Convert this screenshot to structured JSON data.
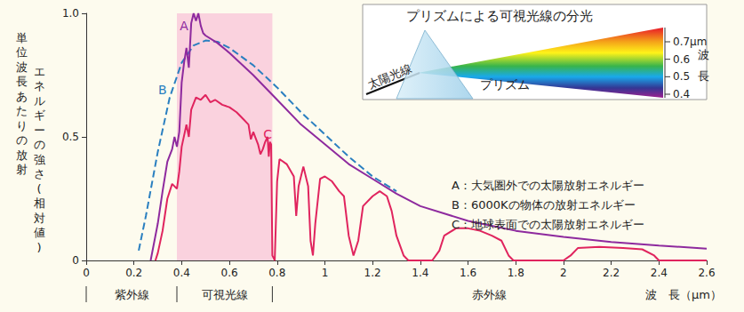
{
  "chart_data": {
    "type": "line",
    "xlabel": "波　長（μm）",
    "ylabel": [
      "単位波長あたりの放射",
      "エネルギーの強さ(相対値)"
    ],
    "xlim": [
      0,
      2.6
    ],
    "xticks": [
      0,
      0.2,
      0.4,
      0.6,
      0.8,
      1.0,
      1.2,
      1.4,
      1.6,
      1.8,
      2.0,
      2.2,
      2.4,
      2.6
    ],
    "ylim": [
      0,
      1
    ],
    "yticks": [
      0,
      0.5,
      {
        "value": 1,
        "label": "1.0"
      }
    ],
    "grid": false,
    "series": [
      {
        "name": "A",
        "legend_text": "A：大気圏外での太陽放射エネルギー",
        "color": "#8e2a9e",
        "line_style": "solid",
        "marker": "none",
        "x": [
          0.27,
          0.3,
          0.32,
          0.34,
          0.36,
          0.37,
          0.38,
          0.39,
          0.4,
          0.41,
          0.42,
          0.43,
          0.44,
          0.45,
          0.46,
          0.47,
          0.48,
          0.49,
          0.5,
          0.55,
          0.6,
          0.7,
          0.8,
          0.9,
          1.0,
          1.1,
          1.2,
          1.3,
          1.4,
          1.6,
          1.8,
          2.0,
          2.2,
          2.4,
          2.6
        ],
        "values": [
          0,
          0.15,
          0.28,
          0.4,
          0.45,
          0.5,
          0.46,
          0.52,
          0.72,
          0.8,
          0.86,
          0.78,
          0.96,
          1.0,
          0.97,
          1.0,
          0.95,
          0.92,
          0.91,
          0.88,
          0.84,
          0.75,
          0.65,
          0.55,
          0.47,
          0.39,
          0.33,
          0.27,
          0.22,
          0.16,
          0.12,
          0.095,
          0.075,
          0.06,
          0.048
        ]
      },
      {
        "name": "B",
        "legend_text": "B：6000Kの物体の放射エネルギー",
        "color": "#2a7fc0",
        "line_style": "dashed",
        "marker": "none",
        "x": [
          0.22,
          0.25,
          0.3,
          0.35,
          0.4,
          0.45,
          0.5,
          0.55,
          0.6,
          0.7,
          0.8,
          0.9,
          1.0,
          1.1,
          1.2,
          1.3
        ],
        "values": [
          0.04,
          0.18,
          0.44,
          0.66,
          0.8,
          0.87,
          0.89,
          0.885,
          0.86,
          0.79,
          0.7,
          0.6,
          0.51,
          0.42,
          0.34,
          0.28
        ]
      },
      {
        "name": "C",
        "legend_text": "C：地球表面での太陽放射エネルギー",
        "color": "#e0245e",
        "line_style": "solid",
        "marker": "none",
        "x": [
          0.29,
          0.3,
          0.32,
          0.34,
          0.36,
          0.38,
          0.39,
          0.4,
          0.42,
          0.43,
          0.44,
          0.46,
          0.48,
          0.5,
          0.52,
          0.54,
          0.57,
          0.6,
          0.63,
          0.66,
          0.68,
          0.69,
          0.7,
          0.72,
          0.73,
          0.74,
          0.75,
          0.76,
          0.765,
          0.77,
          0.775,
          0.78,
          0.79,
          0.8,
          0.81,
          0.84,
          0.87,
          0.88,
          0.89,
          0.91,
          0.93,
          0.94,
          0.95,
          0.96,
          0.98,
          1.0,
          1.03,
          1.06,
          1.08,
          1.1,
          1.12,
          1.14,
          1.16,
          1.2,
          1.23,
          1.26,
          1.28,
          1.3,
          1.33,
          1.35,
          1.45,
          1.48,
          1.5,
          1.55,
          1.6,
          1.65,
          1.7,
          1.74,
          1.77,
          1.79,
          2.0,
          2.03,
          2.06,
          2.15,
          2.25,
          2.33,
          2.38,
          2.4,
          2.6
        ],
        "values": [
          0,
          0.03,
          0.12,
          0.25,
          0.31,
          0.29,
          0.36,
          0.46,
          0.55,
          0.5,
          0.61,
          0.66,
          0.65,
          0.67,
          0.64,
          0.65,
          0.63,
          0.62,
          0.6,
          0.57,
          0.55,
          0.49,
          0.52,
          0.47,
          0.43,
          0.45,
          0.48,
          0.5,
          0.42,
          0.48,
          0.47,
          0.02,
          0,
          0.32,
          0.41,
          0.39,
          0.34,
          0.18,
          0.3,
          0.38,
          0.3,
          0.08,
          0.02,
          0.15,
          0.33,
          0.34,
          0.32,
          0.28,
          0.26,
          0.1,
          0.02,
          0.08,
          0.22,
          0.26,
          0.28,
          0.26,
          0.2,
          0.1,
          0.02,
          0,
          0,
          0.04,
          0.1,
          0.13,
          0.13,
          0.12,
          0.1,
          0.08,
          0.02,
          0,
          0,
          0.02,
          0.05,
          0.055,
          0.05,
          0.045,
          0.02,
          0,
          0
        ]
      }
    ],
    "annotations": [
      {
        "text": "A",
        "x": 0.41,
        "y": 0.95
      },
      {
        "text": "B",
        "x": 0.32,
        "y": 0.69
      },
      {
        "text": "C",
        "x": 0.76,
        "y": 0.51
      }
    ],
    "bands": [
      {
        "label": "紫外線",
        "range": [
          0,
          0.38
        ]
      },
      {
        "label": "可視光線",
        "range": [
          0.38,
          0.78
        ],
        "color": "#f9cadb"
      },
      {
        "label": "赤外線",
        "range": [
          0.78,
          2.6
        ]
      }
    ],
    "inset": {
      "title": "プリズムによる可視光線の分光",
      "beam_label": "太陽光線",
      "prism_label": "プリズム",
      "scale_ticks": [
        {
          "value": 0.7,
          "label": "0.7μm"
        },
        0.6,
        0.5,
        0.4
      ],
      "scale_label": "波長"
    }
  }
}
